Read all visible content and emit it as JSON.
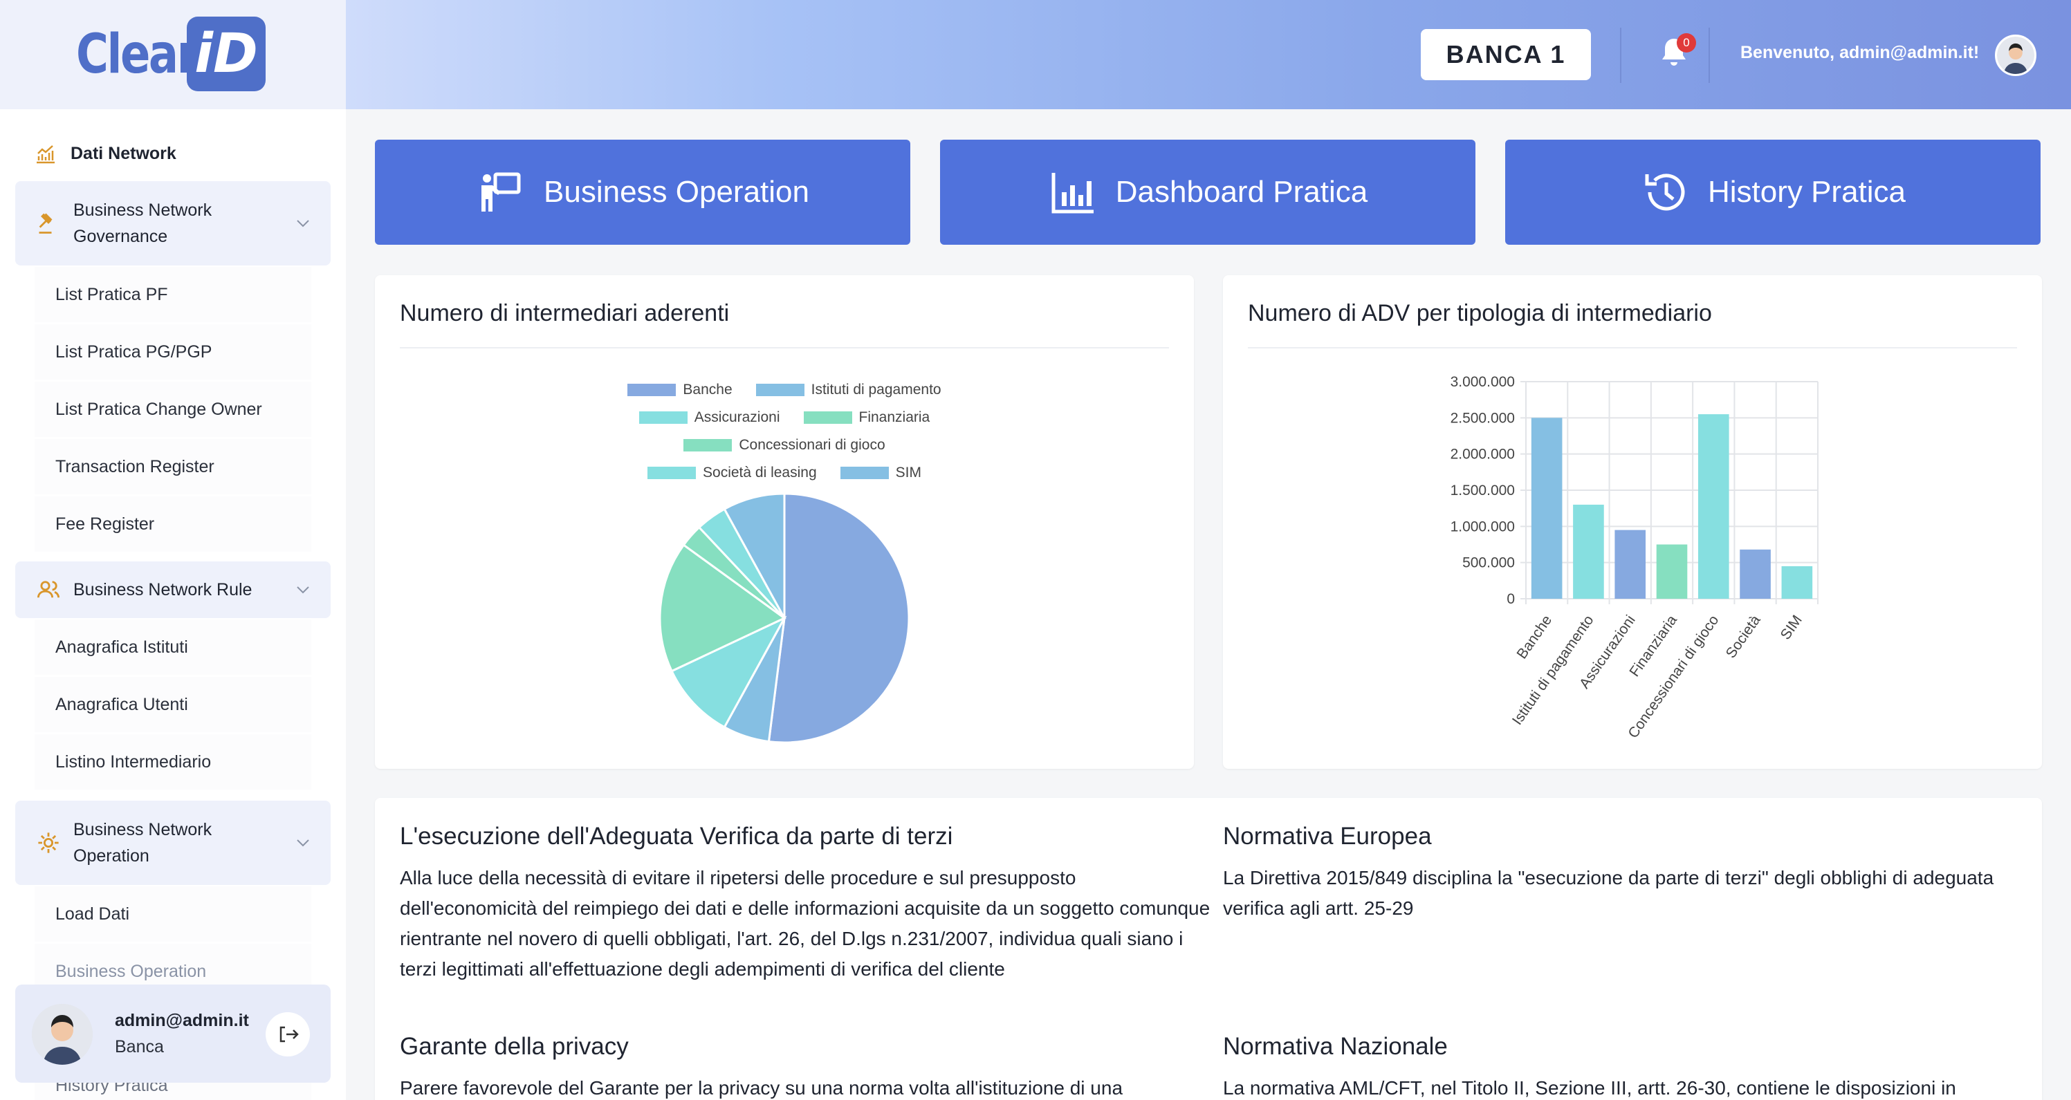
{
  "app": {
    "logo_text": "Clear",
    "logo_badge": "iD"
  },
  "sidebar": {
    "dashboard_label": "Dati Network",
    "groups": [
      {
        "label": "Business Network Governance",
        "items": [
          "List Pratica PF",
          "List Pratica PG/PGP",
          "List Pratica Change Owner",
          "Transaction Register",
          "Fee Register"
        ]
      },
      {
        "label": "Business Network Rule",
        "items": [
          "Anagrafica Istituti",
          "Anagrafica Utenti",
          "Listino Intermediario"
        ]
      },
      {
        "label": "Business Network Operation",
        "items": [
          "Load Dati",
          "Business Operation",
          "History Pratica"
        ]
      }
    ],
    "user": {
      "name": "admin@admin.it",
      "role": "Banca"
    }
  },
  "topbar": {
    "bank_label": "BANCA 1",
    "notification_count": "0",
    "welcome": "Benvenuto, admin@admin.it!"
  },
  "actions": [
    {
      "label": "Business Operation",
      "icon": "presentation-icon"
    },
    {
      "label": "Dashboard Pratica",
      "icon": "bar-chart-icon"
    },
    {
      "label": "History Pratica",
      "icon": "history-icon"
    }
  ],
  "colors": {
    "accent": "#5072dc",
    "series": [
      "#86a9e0",
      "#85bfe3",
      "#86dfe0",
      "#86dfc0"
    ]
  },
  "chart_data": [
    {
      "type": "pie",
      "title": "Numero di intermediari aderenti",
      "categories": [
        "Banche",
        "Istituti di pagamento",
        "Assicurazioni",
        "Finanziaria",
        "Concessionari di gioco",
        "Società di leasing",
        "SIM"
      ],
      "values": [
        52,
        6,
        10,
        17,
        3,
        4,
        8
      ],
      "colors": [
        "#86a9e0",
        "#85bfe3",
        "#86dfe0",
        "#86dfc0",
        "#86dfc0",
        "#86dfe0",
        "#85bfe3"
      ]
    },
    {
      "type": "bar",
      "title": "Numero di ADV per tipologia di intermediario",
      "categories": [
        "Banche",
        "Istituti di pagamento",
        "Assicurazioni",
        "Finanziaria",
        "Concessionari di gioco",
        "Società",
        "SIM"
      ],
      "values": [
        2500000,
        1300000,
        950000,
        750000,
        2550000,
        680000,
        450000
      ],
      "colors": [
        "#85bfe3",
        "#86dfe0",
        "#86a9e0",
        "#86dfc0",
        "#86dfe0",
        "#86a9e0",
        "#86dfe0"
      ],
      "ylim": [
        0,
        3000000
      ],
      "yticks": [
        "0",
        "500.000",
        "1.000.000",
        "1.500.000",
        "2.000.000",
        "2.500.000",
        "3.000.000"
      ],
      "grid": true
    }
  ],
  "info": {
    "left": [
      {
        "heading": "L'esecuzione dell'Adeguata Verifica da parte di terzi",
        "body": "Alla luce della necessità di evitare il ripetersi delle procedure e sul presupposto dell'economicità del reimpiego dei dati e delle informazioni acquisite da un soggetto comunque rientrante nel novero di quelli obbligati, l'art. 26, del D.lgs n.231/2007, individua quali siano i terzi legittimati all'effettuazione degli adempimenti di verifica del cliente"
      },
      {
        "heading": "Garante della privacy",
        "body": "Parere favorevole del Garante per la privacy su una norma volta all'istituzione di una"
      }
    ],
    "right": [
      {
        "heading": "Normativa Europea",
        "body": "La Direttiva 2015/849 disciplina la \"esecuzione da parte di terzi\" degli obblighi di adeguata verifica agli artt. 25-29"
      },
      {
        "heading": "Normativa Nazionale",
        "body": "La normativa AML/CFT, nel Titolo II, Sezione III, artt. 26-30, contiene le disposizioni in"
      }
    ]
  }
}
